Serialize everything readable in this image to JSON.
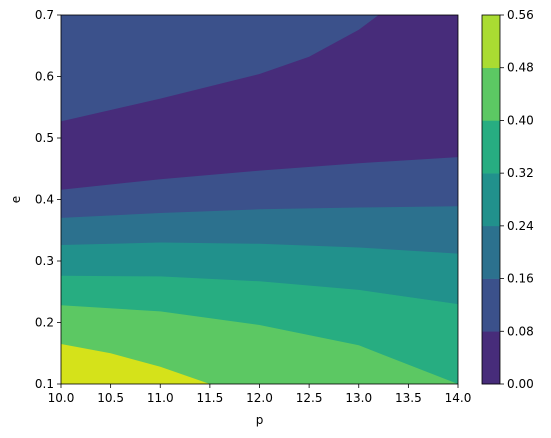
{
  "chart_data": {
    "type": "heatmap",
    "subtype": "filled-contour",
    "title": "",
    "xlabel": "p",
    "ylabel": "e",
    "xlim": [
      10.0,
      14.0
    ],
    "ylim": [
      0.1,
      0.7
    ],
    "x_ticks": [
      "10.0",
      "10.5",
      "11.0",
      "11.5",
      "12.0",
      "12.5",
      "13.0",
      "13.5",
      "14.0"
    ],
    "y_ticks": [
      "0.1",
      "0.2",
      "0.3",
      "0.4",
      "0.5",
      "0.6",
      "0.7"
    ],
    "colorbar": {
      "levels": [
        0.0,
        0.08,
        0.16,
        0.24,
        0.32,
        0.4,
        0.48,
        0.56
      ],
      "tick_labels": [
        "0.00",
        "0.08",
        "0.16",
        "0.24",
        "0.32",
        "0.40",
        "0.48",
        "0.56"
      ],
      "colors": [
        "#472c7a",
        "#3b518b",
        "#2c718e",
        "#21918c",
        "#27ad81",
        "#5cc863",
        "#aadc32",
        "#d5e21a"
      ],
      "colormap": "viridis"
    },
    "contour_boundaries": [
      {
        "level": 0.48,
        "points": [
          [
            10.0,
            0.165
          ],
          [
            10.5,
            0.15
          ],
          [
            11.0,
            0.128
          ],
          [
            11.5,
            0.1
          ]
        ]
      },
      {
        "level": 0.4,
        "points": [
          [
            10.0,
            0.228
          ],
          [
            11.0,
            0.218
          ],
          [
            12.0,
            0.196
          ],
          [
            13.0,
            0.163
          ],
          [
            14.0,
            0.1
          ]
        ]
      },
      {
        "level": 0.32,
        "points": [
          [
            10.0,
            0.276
          ],
          [
            11.0,
            0.275
          ],
          [
            12.0,
            0.267
          ],
          [
            13.0,
            0.253
          ],
          [
            14.0,
            0.23
          ]
        ]
      },
      {
        "level": 0.24,
        "points": [
          [
            10.0,
            0.326
          ],
          [
            11.0,
            0.33
          ],
          [
            12.0,
            0.328
          ],
          [
            13.0,
            0.322
          ],
          [
            14.0,
            0.312
          ]
        ]
      },
      {
        "level": 0.16,
        "points": [
          [
            10.0,
            0.37
          ],
          [
            11.0,
            0.378
          ],
          [
            12.0,
            0.384
          ],
          [
            13.0,
            0.387
          ],
          [
            14.0,
            0.389
          ]
        ]
      },
      {
        "level": 0.08,
        "points": [
          [
            10.0,
            0.416
          ],
          [
            11.0,
            0.433
          ],
          [
            12.0,
            0.447
          ],
          [
            13.0,
            0.459
          ],
          [
            14.0,
            0.469
          ]
        ]
      },
      {
        "level": 0.0,
        "points": [
          [
            10.0,
            0.527
          ],
          [
            11.0,
            0.564
          ],
          [
            12.0,
            0.604
          ],
          [
            12.5,
            0.632
          ],
          [
            13.0,
            0.676
          ],
          [
            13.2,
            0.7
          ]
        ]
      }
    ]
  }
}
